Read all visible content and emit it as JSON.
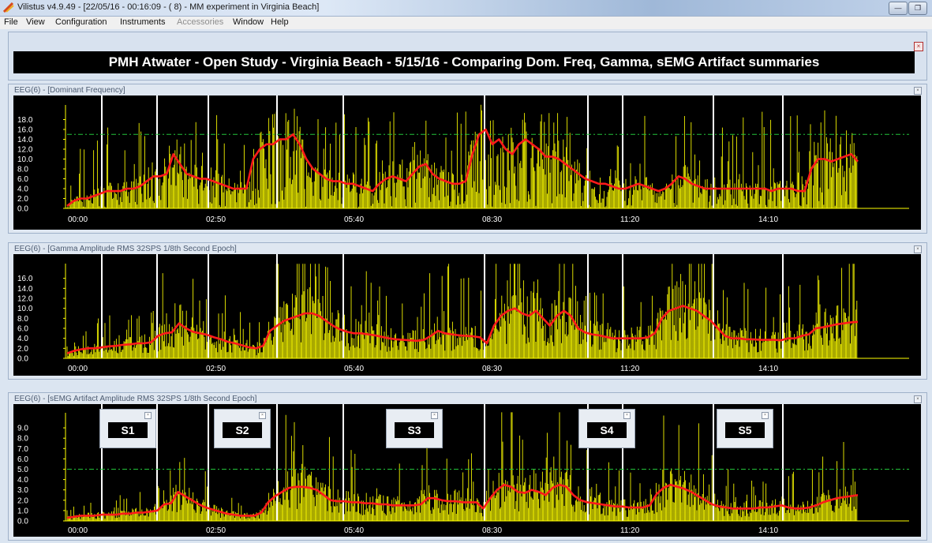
{
  "window": {
    "title": "Vilistus v4.9.49 - [22/05/16 - 00:16:09 - ( 8) - MM experiment in Virginia Beach]",
    "minimize_icon": "minimize-icon",
    "restore_icon": "restore-icon"
  },
  "menu": [
    {
      "label": "File",
      "enabled": true
    },
    {
      "label": "View",
      "enabled": true
    },
    {
      "label": "Configuration",
      "enabled": true
    },
    {
      "label": "Instruments",
      "enabled": true
    },
    {
      "label": "Accessories",
      "enabled": false
    },
    {
      "label": "Window",
      "enabled": true
    },
    {
      "label": "Help",
      "enabled": true
    }
  ],
  "banner": {
    "text": "PMH Atwater - Open Study - Virginia Beach - 5/15/16 - Comparing Dom. Freq, Gamma, sEMG Artifact summaries"
  },
  "colors": {
    "raw": "#ffff00",
    "avg": "#ff1a1a",
    "threshold": "#22c33a",
    "grid": "#ffffff",
    "axis": "#ffff00",
    "background": "#000000"
  },
  "x_ticks": [
    "00:00",
    "02:50",
    "05:40",
    "08:30",
    "11:20",
    "14:10"
  ],
  "panels": [
    {
      "title": "EEG(6) - [Dominant Frequency]",
      "y_ticks": [
        "18.0",
        "16.0",
        "14.0",
        "12.0",
        "10.0",
        "8.0",
        "6.0",
        "4.0",
        "2.0",
        "0.0"
      ]
    },
    {
      "title": "EEG(6) - [Gamma Amplitude RMS 32SPS 1/8th Second Epoch]",
      "y_ticks": [
        "16.0",
        "14.0",
        "12.0",
        "10.0",
        "8.0",
        "6.0",
        "4.0",
        "2.0",
        "0.0"
      ]
    },
    {
      "title": "EEG(6) - [sEMG Artifact Amplitude RMS 32SPS 1/8th Second Epoch]",
      "y_ticks": [
        "9.0",
        "8.0",
        "7.0",
        "6.0",
        "5.0",
        "4.0",
        "3.0",
        "2.0",
        "1.0",
        "0.0"
      ]
    }
  ],
  "sessions": [
    "S1",
    "S2",
    "S3",
    "S4",
    "S5"
  ],
  "chart_data": [
    {
      "type": "line",
      "title": "EEG(6) - [Dominant Frequency]",
      "xlabel": "",
      "ylabel": "",
      "x_range": [
        "00:00",
        "~16:30"
      ],
      "ylim": [
        0,
        20
      ],
      "threshold": 15,
      "grid": false,
      "series": [
        {
          "values": [
            0.5,
            1.5,
            2,
            2,
            2.5,
            3,
            3.5,
            3.5,
            3.5,
            4,
            4,
            4.5,
            5.5,
            6.5,
            6.5,
            7,
            11,
            9,
            7,
            6.5,
            6,
            6,
            5.5,
            5,
            4.5,
            4,
            4,
            4,
            10,
            12,
            13,
            13,
            14,
            14,
            15,
            13,
            10,
            8,
            7,
            6,
            5.5,
            5.5,
            5,
            5,
            4.5,
            4,
            3.5,
            5,
            6,
            6.5,
            6,
            5.5,
            7,
            8.5,
            9,
            7,
            6,
            5.5,
            5,
            5,
            5.5,
            11,
            15,
            16,
            13,
            14,
            12,
            11,
            13,
            14,
            13,
            12,
            10.5,
            10.5,
            10,
            9,
            8,
            7,
            6,
            5.5,
            5,
            5,
            4.5,
            4,
            4,
            4.5,
            5,
            4.5,
            4,
            3.5,
            4,
            5,
            6.5,
            6,
            5,
            4.5,
            4,
            4,
            4,
            4,
            4,
            4,
            4,
            4,
            4,
            4,
            3.5,
            4,
            4,
            4,
            3.5,
            3.5,
            8,
            10,
            10,
            9.5,
            10,
            10.5,
            11,
            9.5
          ]
        }
      ]
    },
    {
      "type": "line",
      "title": "EEG(6) - [Gamma Amplitude RMS 32SPS 1/8th Second Epoch]",
      "xlabel": "",
      "ylabel": "",
      "x_range": [
        "00:00",
        "~16:30"
      ],
      "ylim": [
        0,
        18
      ],
      "grid": false,
      "series": [
        {
          "values": [
            1,
            1.5,
            1.8,
            2,
            2,
            2.2,
            2.4,
            2.5,
            2.7,
            2.8,
            3,
            3,
            3.2,
            4.5,
            5,
            5.2,
            7,
            6,
            5.3,
            5,
            4.7,
            4.2,
            3.8,
            3.3,
            3,
            2.6,
            2.2,
            2,
            2.5,
            5.5,
            6.5,
            7.5,
            8,
            8.5,
            9,
            9,
            8.5,
            7.5,
            6.5,
            5.8,
            5.3,
            5,
            5,
            4.8,
            4.6,
            4.3,
            4,
            3.8,
            3.7,
            3.6,
            3.5,
            3.7,
            4.5,
            5.5,
            5,
            4.8,
            4.6,
            4.5,
            4.4,
            4.2,
            3,
            6.5,
            8.5,
            9.5,
            10,
            9,
            8.5,
            9.5,
            8,
            6.5,
            8.5,
            9.5,
            8.5,
            6,
            5.2,
            4.8,
            4.6,
            4.3,
            4,
            4,
            4,
            4,
            4,
            4.2,
            5,
            8,
            9.5,
            10,
            10.5,
            10,
            9.5,
            8.5,
            7.5,
            6,
            4.5,
            4,
            4,
            3.8,
            3.8,
            3.7,
            3.7,
            3.7,
            3.6,
            4,
            4,
            4.5,
            4.8,
            6,
            6.2,
            6.5,
            6.8,
            7,
            7.2,
            7.3
          ]
        }
      ]
    },
    {
      "type": "line",
      "title": "EEG(6) - [sEMG Artifact Amplitude RMS 32SPS 1/8th Second Epoch]",
      "xlabel": "",
      "ylabel": "",
      "x_range": [
        "00:00",
        "~16:30"
      ],
      "ylim": [
        0,
        10
      ],
      "threshold": 5,
      "grid": false,
      "series": [
        {
          "values": [
            0.3,
            0.4,
            0.5,
            0.5,
            0.5,
            0.6,
            0.6,
            0.6,
            0.7,
            0.7,
            0.8,
            0.8,
            0.9,
            1,
            1.6,
            1.7,
            2.8,
            2.4,
            2,
            1.6,
            1.3,
            1.1,
            0.9,
            0.7,
            0.6,
            0.5,
            0.5,
            0.5,
            0.8,
            1.8,
            2.4,
            2.8,
            3.2,
            3.3,
            3.3,
            3.2,
            3,
            2.5,
            2,
            1.9,
            1.9,
            1.8,
            1.8,
            1.7,
            1.7,
            1.6,
            1.6,
            1.5,
            1.5,
            1.5,
            1.5,
            1.6,
            2.2,
            2.2,
            2,
            1.9,
            1.9,
            1.8,
            1.8,
            1.8,
            1.2,
            2.2,
            3,
            3.5,
            3.3,
            2.8,
            2.7,
            3,
            2.8,
            2.5,
            3.2,
            3.5,
            3.3,
            2.5,
            2,
            1.8,
            1.7,
            1.6,
            1.5,
            1.4,
            1.4,
            1.3,
            1.3,
            1.3,
            1.5,
            2.6,
            3.2,
            3.5,
            3.3,
            3.1,
            2.8,
            2.4,
            2,
            1.6,
            1.4,
            1.3,
            1.2,
            1.2,
            1.2,
            1.2,
            1.3,
            1.3,
            1.4,
            1.5,
            1.3,
            1.2,
            1.2,
            1.3,
            1.5,
            1.8,
            2,
            2.2,
            2.3,
            2.4,
            2.5
          ]
        }
      ]
    }
  ]
}
